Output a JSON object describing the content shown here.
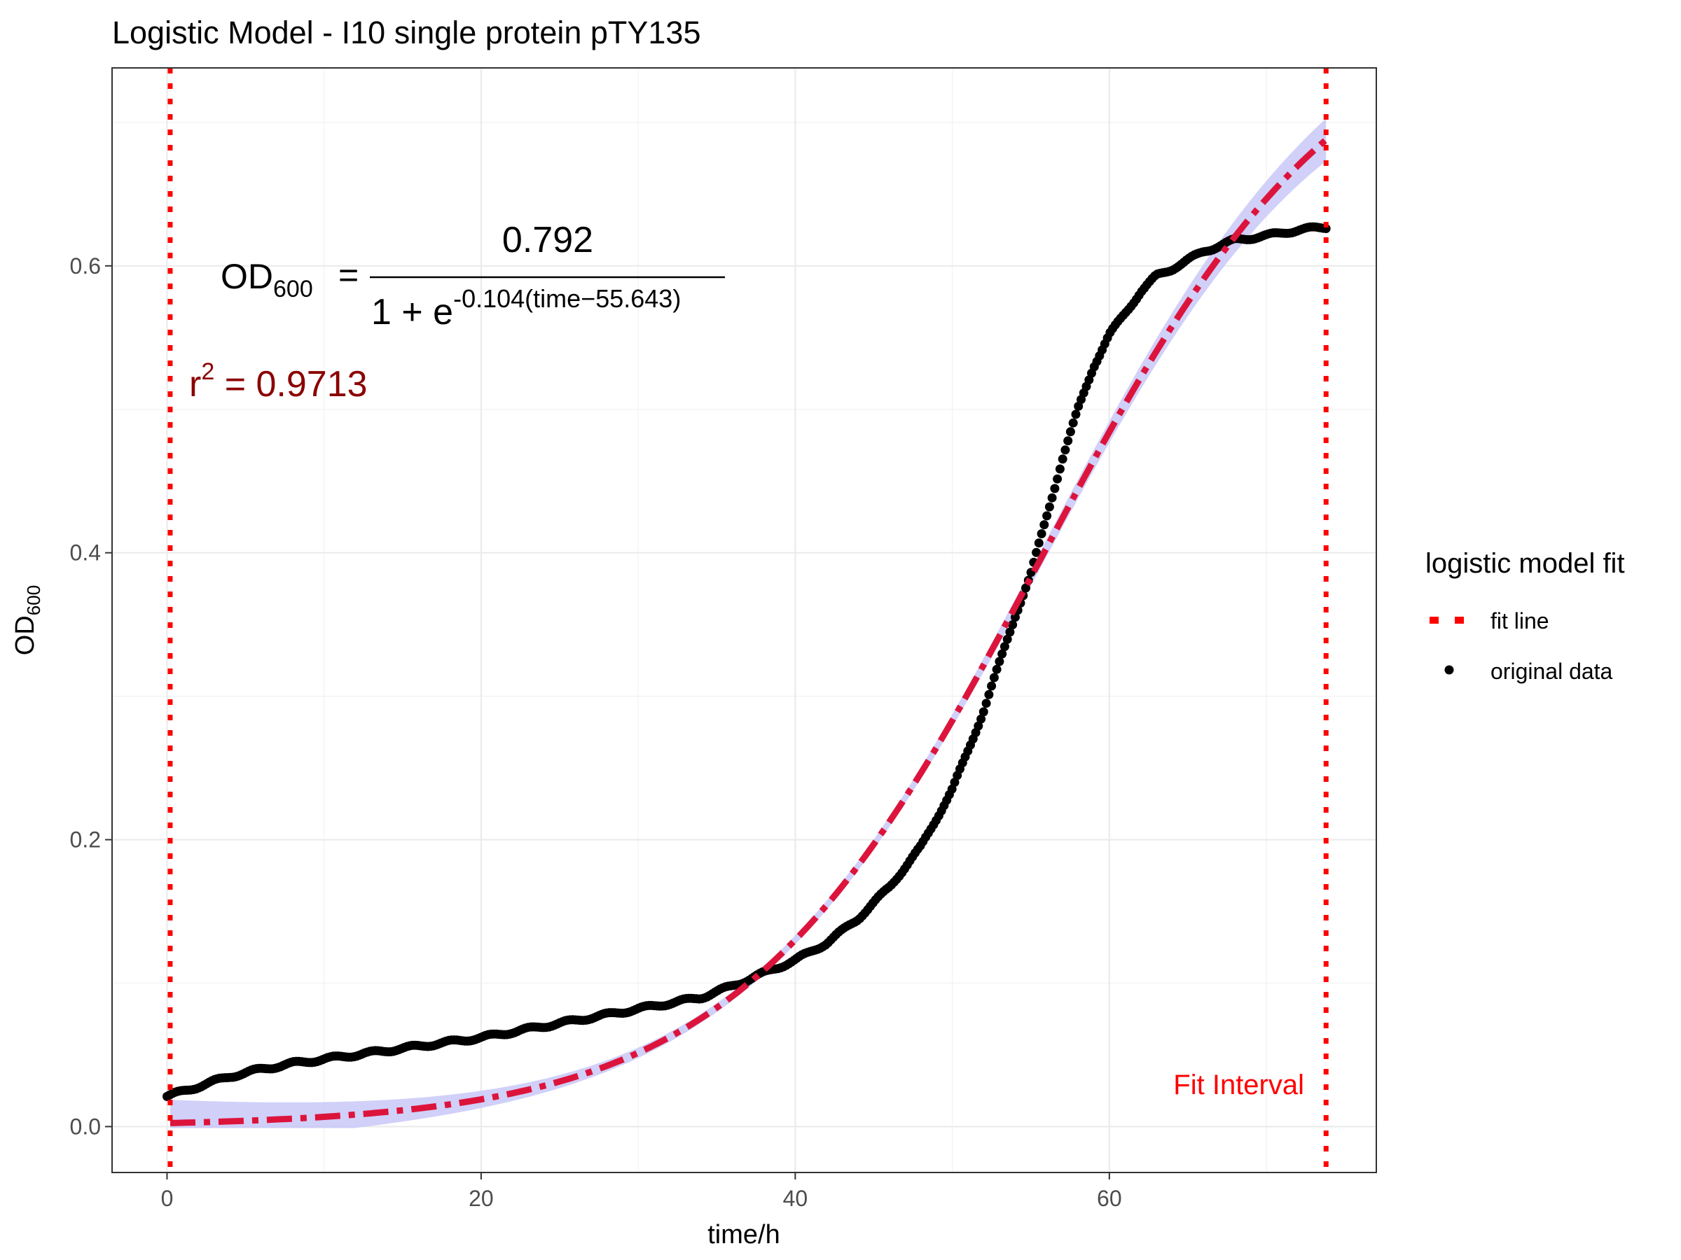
{
  "chart_data": {
    "type": "scatter",
    "title": "Logistic Model -  I10 single protein pTY135",
    "xlabel": "time/h",
    "ylabel": {
      "main": "OD",
      "sub": "600"
    },
    "xlim": [
      -3.5,
      77
    ],
    "ylim": [
      -0.032,
      0.738
    ],
    "x_ticks": [
      0,
      20,
      40,
      60
    ],
    "x_tick_labels": [
      "0",
      "20",
      "40",
      "60"
    ],
    "y_ticks": [
      0.0,
      0.2,
      0.4,
      0.6
    ],
    "y_tick_labels": [
      "0.0",
      "0.2",
      "0.4",
      "0.6"
    ],
    "grid": true,
    "legend_position": "right",
    "legend": {
      "title": "logistic model fit",
      "entries": [
        {
          "label": "fit line",
          "style": "dashed-line",
          "color": "#DC143C"
        },
        {
          "label": "original data",
          "style": "point",
          "color": "#000000"
        }
      ]
    },
    "fit_interval": {
      "x_start": 0.2,
      "x_end": 73.8,
      "label": "Fit Interval",
      "color": "#FF0000"
    },
    "equation": {
      "lhs_main": "OD",
      "lhs_sub": "600",
      "equals": "=",
      "numerator": "0.792",
      "denominator_base": "1 + e",
      "denominator_exponent": "-0.104(time−55.643)"
    },
    "r_squared": {
      "label": "r",
      "power": "2",
      "equals": " = ",
      "value": "0.9713",
      "color": "#8B0000"
    },
    "fit_model": {
      "K": 0.792,
      "r": 0.104,
      "t0": 55.643
    },
    "confidence_band_color": "#C8C8F8",
    "original_data": {
      "name": "original data",
      "x": [
        0,
        2,
        4,
        6,
        8,
        10,
        12,
        14,
        16,
        18,
        20,
        22,
        24,
        26,
        28,
        30,
        32,
        34,
        36,
        38,
        40,
        42,
        44,
        46,
        48,
        50,
        51,
        52,
        53,
        54,
        55,
        56,
        57,
        58,
        59,
        60,
        61,
        62,
        63,
        64,
        65,
        66,
        67,
        68,
        70,
        72,
        73.8
      ],
      "y": [
        0.021,
        0.028,
        0.035,
        0.04,
        0.044,
        0.047,
        0.05,
        0.053,
        0.056,
        0.059,
        0.062,
        0.066,
        0.07,
        0.074,
        0.078,
        0.082,
        0.086,
        0.09,
        0.098,
        0.107,
        0.116,
        0.128,
        0.145,
        0.167,
        0.195,
        0.235,
        0.262,
        0.29,
        0.323,
        0.356,
        0.385,
        0.425,
        0.465,
        0.5,
        0.53,
        0.552,
        0.567,
        0.582,
        0.593,
        0.598,
        0.604,
        0.61,
        0.614,
        0.618,
        0.621,
        0.625,
        0.627
      ]
    }
  }
}
